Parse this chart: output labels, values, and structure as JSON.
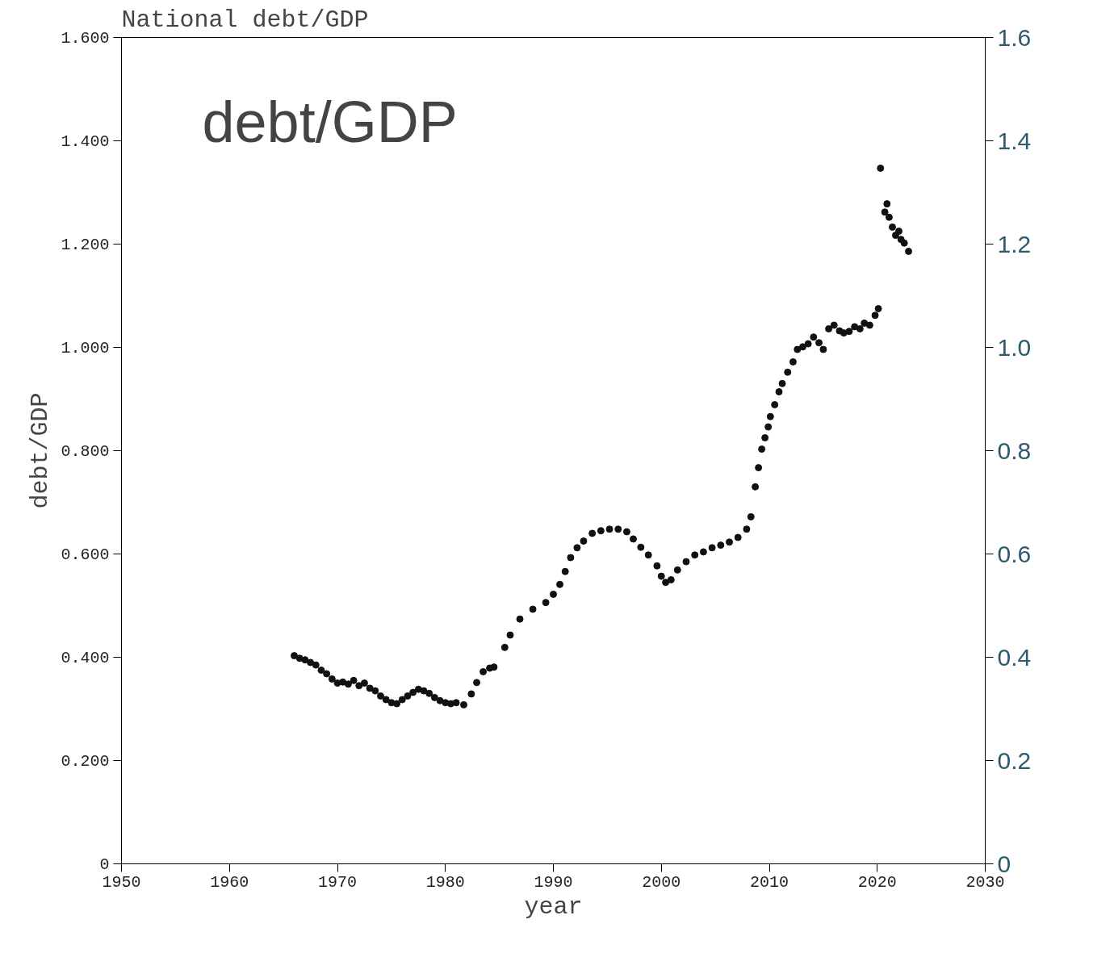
{
  "chart_data": {
    "type": "scatter",
    "title": "National debt/GDP",
    "xlabel": "year",
    "ylabel": "debt/GDP",
    "annotations": [
      "debt/GDP"
    ],
    "marker": "circle",
    "grid": false,
    "xlim": [
      1950,
      2030
    ],
    "xticks": [
      1950,
      1960,
      1970,
      1980,
      1990,
      2000,
      2010,
      2020,
      2030
    ],
    "ylim": [
      0,
      1.6
    ],
    "yticks": [
      0,
      {
        "value": 0.2,
        "label": "0.200"
      },
      {
        "value": 0.4,
        "label": "0.400"
      },
      {
        "value": 0.6,
        "label": "0.600"
      },
      {
        "value": 0.8,
        "label": "0.800"
      },
      {
        "value": 1.0,
        "label": "1.000"
      },
      {
        "value": 1.2,
        "label": "1.200"
      },
      {
        "value": 1.4,
        "label": "1.400"
      },
      {
        "value": 1.6,
        "label": "1.600"
      }
    ],
    "y2lim": [
      0,
      1.6
    ],
    "y2ticks": [
      0,
      {
        "value": 0.2,
        "label": "0.2"
      },
      {
        "value": 0.4,
        "label": "0.4"
      },
      {
        "value": 0.6,
        "label": "0.6"
      },
      {
        "value": 0.8,
        "label": "0.8"
      },
      {
        "value": 1.0,
        "label": "1.0"
      },
      {
        "value": 1.2,
        "label": "1.2"
      },
      {
        "value": 1.4,
        "label": "1.4"
      },
      {
        "value": 1.6,
        "label": "1.6"
      }
    ],
    "series": [
      {
        "color": "#111111",
        "x": [
          1966.0,
          1966.5,
          1967.0,
          1967.5,
          1968.0,
          1968.5,
          1969.0,
          1969.5,
          1970.0,
          1970.5,
          1971.0,
          1971.5,
          1972.0,
          1972.5,
          1973.0,
          1973.5,
          1974.0,
          1974.5,
          1975.0,
          1975.5,
          1976.0,
          1976.5,
          1977.0,
          1977.5,
          1978.0,
          1978.5,
          1979.0,
          1979.5,
          1980.0,
          1980.5,
          1981.0,
          1981.7,
          1982.4,
          1982.9,
          1983.5,
          1984.1,
          1984.5,
          1985.5,
          1986.0,
          1986.9,
          1988.1,
          1989.3,
          1990.0,
          1990.6,
          1991.1,
          1991.6,
          1992.2,
          1992.8,
          1993.6,
          1994.4,
          1995.2,
          1996.0,
          1996.8,
          1997.4,
          1998.1,
          1998.8,
          1999.6,
          2000.0,
          2000.4,
          2000.9,
          2001.5,
          2002.3,
          2003.1,
          2003.9,
          2004.7,
          2005.5,
          2006.3,
          2007.1,
          2007.9,
          2008.3,
          2008.7,
          2009.0,
          2009.3,
          2009.6,
          2009.9,
          2010.1,
          2010.5,
          2010.9,
          2011.2,
          2011.7,
          2012.2,
          2012.6,
          2013.1,
          2013.6,
          2014.1,
          2014.6,
          2015.0,
          2015.5,
          2016.0,
          2016.5,
          2016.9,
          2017.4,
          2017.9,
          2018.4,
          2018.8,
          2019.3,
          2019.8,
          2020.1,
          2020.3,
          2020.7,
          2020.9,
          2021.1,
          2021.4,
          2021.7,
          2022.0,
          2022.2,
          2022.5,
          2022.9
        ],
        "values": [
          0.403,
          0.398,
          0.395,
          0.39,
          0.385,
          0.375,
          0.368,
          0.358,
          0.35,
          0.352,
          0.348,
          0.355,
          0.345,
          0.35,
          0.34,
          0.335,
          0.325,
          0.318,
          0.312,
          0.31,
          0.318,
          0.325,
          0.332,
          0.338,
          0.335,
          0.33,
          0.322,
          0.316,
          0.312,
          0.31,
          0.312,
          0.308,
          0.329,
          0.351,
          0.372,
          0.379,
          0.381,
          0.419,
          0.443,
          0.474,
          0.493,
          0.506,
          0.522,
          0.541,
          0.566,
          0.593,
          0.612,
          0.625,
          0.64,
          0.645,
          0.648,
          0.648,
          0.643,
          0.629,
          0.613,
          0.598,
          0.577,
          0.557,
          0.545,
          0.55,
          0.569,
          0.585,
          0.598,
          0.604,
          0.612,
          0.617,
          0.623,
          0.632,
          0.648,
          0.672,
          0.73,
          0.767,
          0.803,
          0.825,
          0.846,
          0.866,
          0.889,
          0.914,
          0.93,
          0.952,
          0.972,
          0.996,
          1.001,
          1.007,
          1.02,
          1.009,
          0.996,
          1.036,
          1.043,
          1.032,
          1.028,
          1.031,
          1.04,
          1.036,
          1.047,
          1.043,
          1.062,
          1.075,
          1.347,
          1.262,
          1.278,
          1.252,
          1.233,
          1.217,
          1.225,
          1.209,
          1.202,
          1.186
        ]
      }
    ]
  }
}
